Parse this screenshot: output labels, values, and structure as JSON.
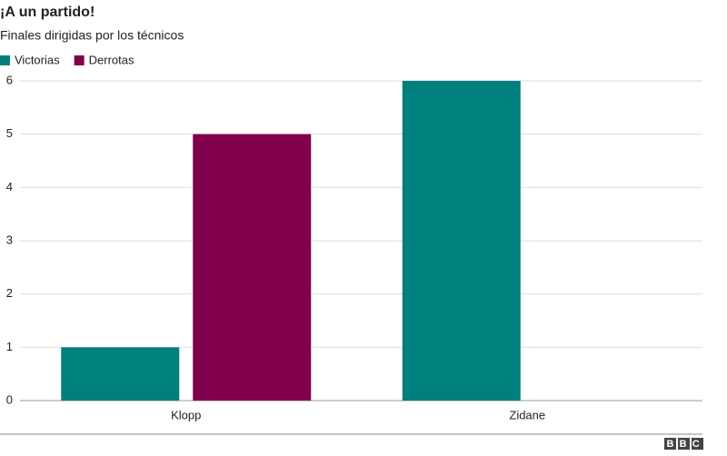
{
  "chart_data": {
    "type": "grouped_bar",
    "title": "¡A un partido!",
    "subtitle": "Finales dirigidas por los técnicos",
    "categories": [
      "Klopp",
      "Zidane"
    ],
    "series": [
      {
        "name": "Victorias",
        "color": "#007f7f",
        "values": [
          1,
          6
        ]
      },
      {
        "name": "Derrotas",
        "color": "#80004b",
        "values": [
          5,
          0
        ]
      }
    ],
    "ylim": [
      0,
      6
    ],
    "yticks": [
      0,
      1,
      2,
      3,
      4,
      5,
      6
    ],
    "grid": true,
    "legend": "top-left"
  },
  "logo": "BBC"
}
